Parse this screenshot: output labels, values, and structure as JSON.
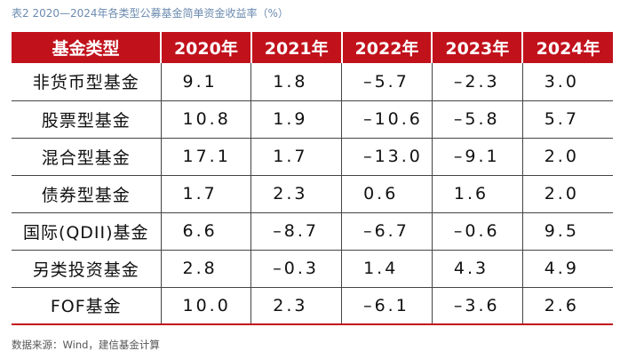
{
  "caption": "表2 2020—2024年各类型公募基金简单资金收益率（%）",
  "table": {
    "headers": [
      "基金类型",
      "2020年",
      "2021年",
      "2022年",
      "2023年",
      "2024年"
    ],
    "rows": [
      [
        "非货币型基金",
        "9.1",
        "1.8",
        "–5.7",
        "–2.3",
        "3.0"
      ],
      [
        "股票型基金",
        "10.8",
        "1.9",
        "–10.6",
        "–5.8",
        "5.7"
      ],
      [
        "混合型基金",
        "17.1",
        "1.7",
        "–13.0",
        "–9.1",
        "2.0"
      ],
      [
        "债券型基金",
        "1.7",
        "2.3",
        "0.6",
        "1.6",
        "2.0"
      ],
      [
        "国际(QDII)基金",
        "6.6",
        "–8.7",
        "–6.7",
        "–0.6",
        "9.5"
      ],
      [
        "另类投资基金",
        "2.8",
        "–0.3",
        "1.4",
        "4.3",
        "4.9"
      ],
      [
        "FOF基金",
        "10.0",
        "2.3",
        "–6.1",
        "–3.6",
        "2.6"
      ]
    ]
  },
  "source": "数据来源：Wind，建信基金计算",
  "colors": {
    "header_bg": "#c1121c",
    "header_text": "#ffffff",
    "caption_text": "#6b8bb0"
  }
}
